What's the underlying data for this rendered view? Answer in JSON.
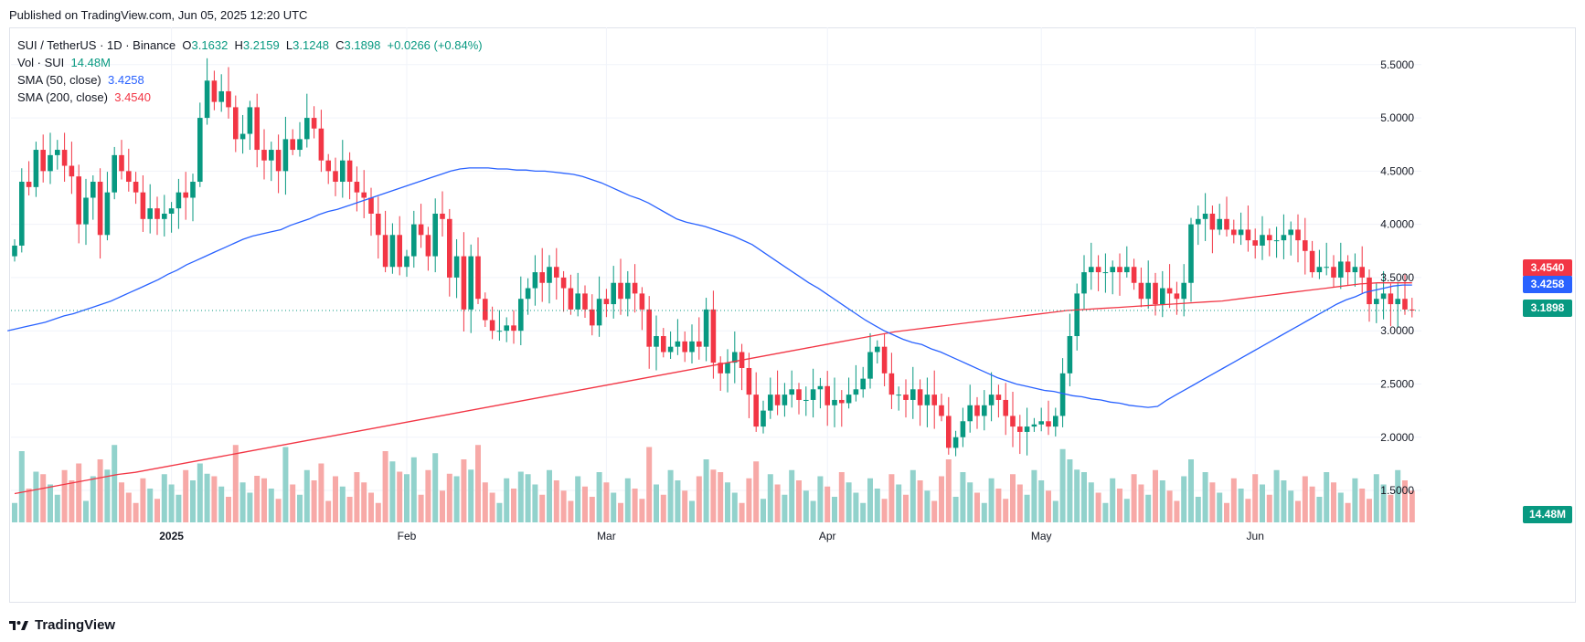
{
  "header": {
    "published": "Published on TradingView.com, Jun 05, 2025 12:20 UTC"
  },
  "legend": {
    "symbol": "SUI / TetherUS · 1D · Binance",
    "open_label": "O",
    "open": "3.1632",
    "high_label": "H",
    "high": "3.2159",
    "low_label": "L",
    "low": "3.1248",
    "close_label": "C",
    "close": "3.1898",
    "change": "+0.0266 (+0.84%)",
    "vol_label": "Vol · SUI",
    "vol": "14.48M",
    "sma50_label": "SMA (50, close)",
    "sma50": "3.4258",
    "sma200_label": "SMA (200, close)",
    "sma200": "3.4540"
  },
  "price_tags": {
    "sma200": "3.4540",
    "sma50": "3.4258",
    "last": "3.1898",
    "volume": "14.48M"
  },
  "footer": {
    "brand": "TradingView"
  },
  "colors": {
    "up": "#089981",
    "down": "#f23645",
    "sma50": "#2962ff",
    "sma200": "#f23645",
    "vol_up": "#92d2cc",
    "vol_down": "#f7a9a7"
  },
  "chart_data": {
    "type": "candlestick",
    "x_tick_labels": [
      "2025",
      "Feb",
      "Mar",
      "Apr",
      "May",
      "Jun"
    ],
    "y_tick_labels": [
      "5.5000",
      "5.0000",
      "4.5000",
      "4.0000",
      "3.5000",
      "3.0000",
      "2.5000",
      "2.0000",
      "1.5000"
    ],
    "ylim": [
      1.2,
      5.85
    ],
    "closes": [
      3.8,
      4.4,
      4.35,
      4.7,
      4.5,
      4.65,
      4.7,
      4.55,
      4.45,
      4.0,
      4.25,
      4.4,
      3.9,
      4.3,
      4.65,
      4.5,
      4.4,
      4.3,
      4.05,
      4.15,
      4.05,
      4.1,
      4.15,
      4.3,
      4.25,
      4.4,
      5.0,
      5.35,
      5.15,
      5.25,
      5.1,
      4.8,
      4.85,
      5.1,
      4.7,
      4.6,
      4.7,
      4.5,
      4.8,
      4.7,
      4.8,
      5.0,
      4.9,
      4.6,
      4.5,
      4.4,
      4.6,
      4.4,
      4.3,
      4.25,
      4.1,
      3.9,
      3.6,
      3.9,
      3.6,
      3.7,
      4.0,
      3.9,
      3.7,
      4.1,
      4.05,
      3.5,
      3.7,
      3.2,
      3.7,
      3.3,
      3.1,
      3.0,
      3.0,
      3.05,
      3.0,
      3.3,
      3.4,
      3.55,
      3.45,
      3.6,
      3.5,
      3.4,
      3.2,
      3.35,
      3.2,
      3.05,
      3.3,
      3.25,
      3.45,
      3.3,
      3.45,
      3.35,
      3.2,
      2.85,
      2.95,
      2.8,
      2.85,
      2.9,
      2.8,
      2.9,
      2.85,
      3.2,
      2.7,
      2.6,
      2.7,
      2.8,
      2.65,
      2.4,
      2.1,
      2.25,
      2.4,
      2.3,
      2.4,
      2.45,
      2.35,
      2.35,
      2.45,
      2.48,
      2.3,
      2.35,
      2.32,
      2.4,
      2.45,
      2.55,
      2.8,
      2.85,
      2.6,
      2.4,
      2.4,
      2.35,
      2.45,
      2.3,
      2.4,
      2.3,
      2.2,
      1.9,
      2.0,
      2.15,
      2.3,
      2.2,
      2.3,
      2.4,
      2.35,
      2.2,
      2.1,
      2.05,
      2.1,
      2.12,
      2.15,
      2.1,
      2.2,
      2.6,
      2.95,
      3.35,
      3.55,
      3.6,
      3.55,
      3.55,
      3.6,
      3.55,
      3.6,
      3.45,
      3.3,
      3.45,
      3.25,
      3.4,
      3.35,
      3.3,
      3.45,
      4.0,
      4.05,
      4.1,
      3.95,
      4.05,
      3.95,
      3.9,
      3.95,
      3.85,
      3.8,
      3.9,
      3.85,
      3.85,
      3.9,
      3.95,
      3.85,
      3.75,
      3.55,
      3.6,
      3.6,
      3.5,
      3.65,
      3.55,
      3.6,
      3.5,
      3.25,
      3.3,
      3.35,
      3.25,
      3.3,
      3.2,
      3.19
    ],
    "sma50": [
      3.0,
      3.02,
      3.04,
      3.06,
      3.08,
      3.11,
      3.14,
      3.16,
      3.19,
      3.22,
      3.25,
      3.28,
      3.32,
      3.36,
      3.4,
      3.44,
      3.48,
      3.53,
      3.57,
      3.62,
      3.66,
      3.7,
      3.74,
      3.78,
      3.82,
      3.86,
      3.89,
      3.91,
      3.93,
      3.95,
      3.99,
      4.02,
      4.05,
      4.09,
      4.12,
      4.14,
      4.17,
      4.2,
      4.23,
      4.26,
      4.29,
      4.32,
      4.35,
      4.38,
      4.41,
      4.44,
      4.47,
      4.5,
      4.52,
      4.53,
      4.53,
      4.53,
      4.52,
      4.52,
      4.51,
      4.51,
      4.5,
      4.5,
      4.49,
      4.48,
      4.47,
      4.45,
      4.42,
      4.39,
      4.35,
      4.31,
      4.27,
      4.24,
      4.2,
      4.15,
      4.1,
      4.05,
      4.02,
      4.0,
      3.98,
      3.95,
      3.92,
      3.89,
      3.85,
      3.81,
      3.75,
      3.69,
      3.63,
      3.57,
      3.51,
      3.45,
      3.4,
      3.34,
      3.28,
      3.22,
      3.16,
      3.1,
      3.05,
      3.0,
      2.96,
      2.92,
      2.89,
      2.87,
      2.83,
      2.8,
      2.76,
      2.72,
      2.68,
      2.64,
      2.6,
      2.56,
      2.53,
      2.5,
      2.48,
      2.46,
      2.44,
      2.43,
      2.41,
      2.39,
      2.38,
      2.36,
      2.35,
      2.33,
      2.32,
      2.3,
      2.29,
      2.28,
      2.29,
      2.35,
      2.4,
      2.45,
      2.5,
      2.55,
      2.6,
      2.65,
      2.7,
      2.75,
      2.8,
      2.85,
      2.9,
      2.95,
      3.0,
      3.05,
      3.1,
      3.15,
      3.2,
      3.25,
      3.29,
      3.32,
      3.36,
      3.38,
      3.4,
      3.42,
      3.43,
      3.43
    ],
    "sma200": [
      1.47,
      1.5,
      1.53,
      1.56,
      1.59,
      1.62,
      1.65,
      1.67,
      1.7,
      1.73,
      1.76,
      1.79,
      1.82,
      1.85,
      1.88,
      1.91,
      1.94,
      1.97,
      2.0,
      2.03,
      2.06,
      2.09,
      2.12,
      2.15,
      2.18,
      2.21,
      2.24,
      2.27,
      2.3,
      2.33,
      2.36,
      2.39,
      2.42,
      2.45,
      2.48,
      2.51,
      2.54,
      2.57,
      2.6,
      2.63,
      2.66,
      2.69,
      2.72,
      2.75,
      2.78,
      2.81,
      2.84,
      2.87,
      2.9,
      2.93,
      2.96,
      2.99,
      3.01,
      3.03,
      3.05,
      3.07,
      3.09,
      3.11,
      3.13,
      3.15,
      3.17,
      3.19,
      3.2,
      3.21,
      3.22,
      3.23,
      3.24,
      3.25,
      3.26,
      3.27,
      3.28,
      3.3,
      3.32,
      3.34,
      3.36,
      3.38,
      3.4,
      3.42,
      3.44,
      3.45,
      3.45,
      3.45
    ],
    "volume_max_fraction": 1.0
  }
}
